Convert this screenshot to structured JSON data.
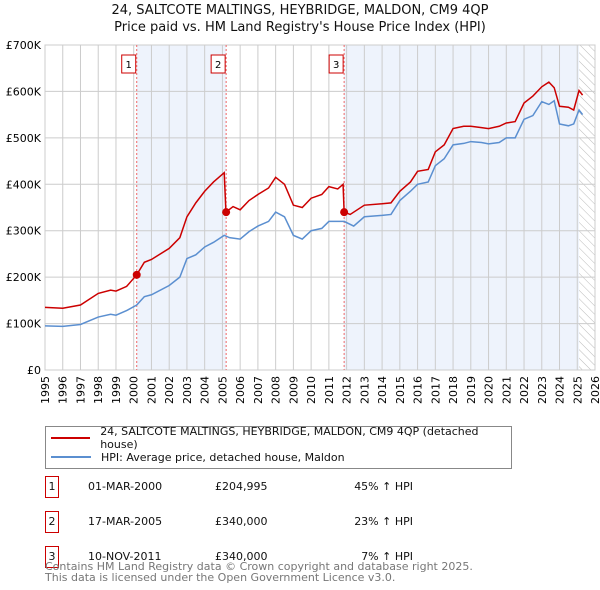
{
  "chart_data": {
    "type": "line",
    "title": "24, SALTCOTE MALTINGS, HEYBRIDGE, MALDON, CM9 4QP",
    "subtitle": "Price paid vs. HM Land Registry's House Price Index (HPI)",
    "xlim": [
      1995,
      2026
    ],
    "ylim": [
      0,
      700000
    ],
    "yticks": [
      0,
      100000,
      200000,
      300000,
      400000,
      500000,
      600000,
      700000
    ],
    "ytick_labels": [
      "£0",
      "£100K",
      "£200K",
      "£300K",
      "£400K",
      "£500K",
      "£600K",
      "£700K"
    ],
    "xticks": [
      1995,
      1996,
      1997,
      1998,
      1999,
      2000,
      2001,
      2002,
      2003,
      2004,
      2005,
      2006,
      2007,
      2008,
      2009,
      2010,
      2011,
      2012,
      2013,
      2014,
      2015,
      2016,
      2017,
      2018,
      2019,
      2020,
      2021,
      2022,
      2023,
      2024,
      2025,
      2026
    ],
    "grid": true,
    "series": [
      {
        "name": "24, SALTCOTE MALTINGS, HEYBRIDGE, MALDON, CM9 4QP (detached house)",
        "color": "#cc0000",
        "x": [
          1995,
          1996,
          1997,
          1998,
          1998.7,
          1999,
          1999.6,
          2000.17,
          2000.6,
          2001,
          2002,
          2002.6,
          2003,
          2003.5,
          2004,
          2004.5,
          2005.1,
          2005.2,
          2005.6,
          2006,
          2006.5,
          2007,
          2007.6,
          2008,
          2008.5,
          2009,
          2009.5,
          2010,
          2010.6,
          2011,
          2011.5,
          2011.8,
          2011.86,
          2012.2,
          2013,
          2014,
          2014.5,
          2015,
          2015.6,
          2016,
          2016.6,
          2017,
          2017.5,
          2018,
          2018.6,
          2019,
          2019.6,
          2020,
          2020.6,
          2021,
          2021.5,
          2022,
          2022.5,
          2023,
          2023.4,
          2023.7,
          2024,
          2024.5,
          2024.8,
          2025.1,
          2025.3
        ],
        "y": [
          135000,
          133000,
          140000,
          165000,
          172000,
          170000,
          180000,
          204995,
          232000,
          238000,
          262000,
          285000,
          330000,
          360000,
          385000,
          405000,
          425000,
          340000,
          352000,
          345000,
          365000,
          378000,
          392000,
          415000,
          400000,
          355000,
          350000,
          370000,
          378000,
          395000,
          390000,
          400000,
          340000,
          335000,
          355000,
          358000,
          360000,
          385000,
          405000,
          428000,
          432000,
          470000,
          485000,
          520000,
          525000,
          525000,
          522000,
          520000,
          525000,
          532000,
          535000,
          575000,
          590000,
          610000,
          620000,
          608000,
          568000,
          566000,
          560000,
          602000,
          592000
        ]
      },
      {
        "name": "HPI: Average price, detached house, Maldon",
        "color": "#5b8fd0",
        "x": [
          1995,
          1996,
          1997,
          1998,
          1998.7,
          1999,
          1999.6,
          2000.17,
          2000.6,
          2001,
          2002,
          2002.6,
          2003,
          2003.5,
          2004,
          2004.5,
          2005.1,
          2005.4,
          2006,
          2006.5,
          2007,
          2007.6,
          2008,
          2008.5,
          2009,
          2009.5,
          2010,
          2010.6,
          2011,
          2011.5,
          2011.86,
          2012.4,
          2013,
          2014,
          2014.5,
          2015,
          2015.6,
          2016,
          2016.6,
          2017,
          2017.5,
          2018,
          2018.6,
          2019,
          2019.6,
          2020,
          2020.6,
          2021,
          2021.5,
          2022,
          2022.5,
          2023,
          2023.4,
          2023.7,
          2024,
          2024.5,
          2024.8,
          2025.1,
          2025.3
        ],
        "y": [
          95000,
          94000,
          98000,
          114000,
          120000,
          118000,
          128000,
          140000,
          158000,
          162000,
          182000,
          200000,
          240000,
          248000,
          265000,
          275000,
          290000,
          285000,
          282000,
          298000,
          310000,
          320000,
          340000,
          330000,
          290000,
          282000,
          300000,
          305000,
          320000,
          320000,
          320000,
          310000,
          330000,
          333000,
          335000,
          365000,
          385000,
          400000,
          405000,
          440000,
          455000,
          485000,
          488000,
          492000,
          490000,
          487000,
          490000,
          500000,
          500000,
          540000,
          548000,
          578000,
          572000,
          580000,
          530000,
          526000,
          530000,
          560000,
          550000
        ]
      }
    ],
    "sales": [
      {
        "n": "1",
        "x": 2000.17,
        "y": 204995,
        "date": "01-MAR-2000",
        "price": "£204,995",
        "hpi": "45% ↑ HPI"
      },
      {
        "n": "2",
        "x": 2005.21,
        "y": 340000,
        "date": "17-MAR-2005",
        "price": "£340,000",
        "hpi": "23% ↑ HPI"
      },
      {
        "n": "3",
        "x": 2011.86,
        "y": 340000,
        "date": "10-NOV-2011",
        "price": "£340,000",
        "hpi": "7% ↑ HPI"
      }
    ],
    "shaded": [
      [
        2000.17,
        2005.21
      ],
      [
        2011.86,
        2025.1
      ]
    ],
    "hatched_from": 2025.1
  },
  "legend": {
    "red": "24, SALTCOTE MALTINGS, HEYBRIDGE, MALDON, CM9 4QP (detached house)",
    "blue": "HPI: Average price, detached house, Maldon"
  },
  "footer": {
    "line1": "Contains HM Land Registry data © Crown copyright and database right 2025.",
    "line2": "This data is licensed under the Open Government Licence v3.0."
  }
}
